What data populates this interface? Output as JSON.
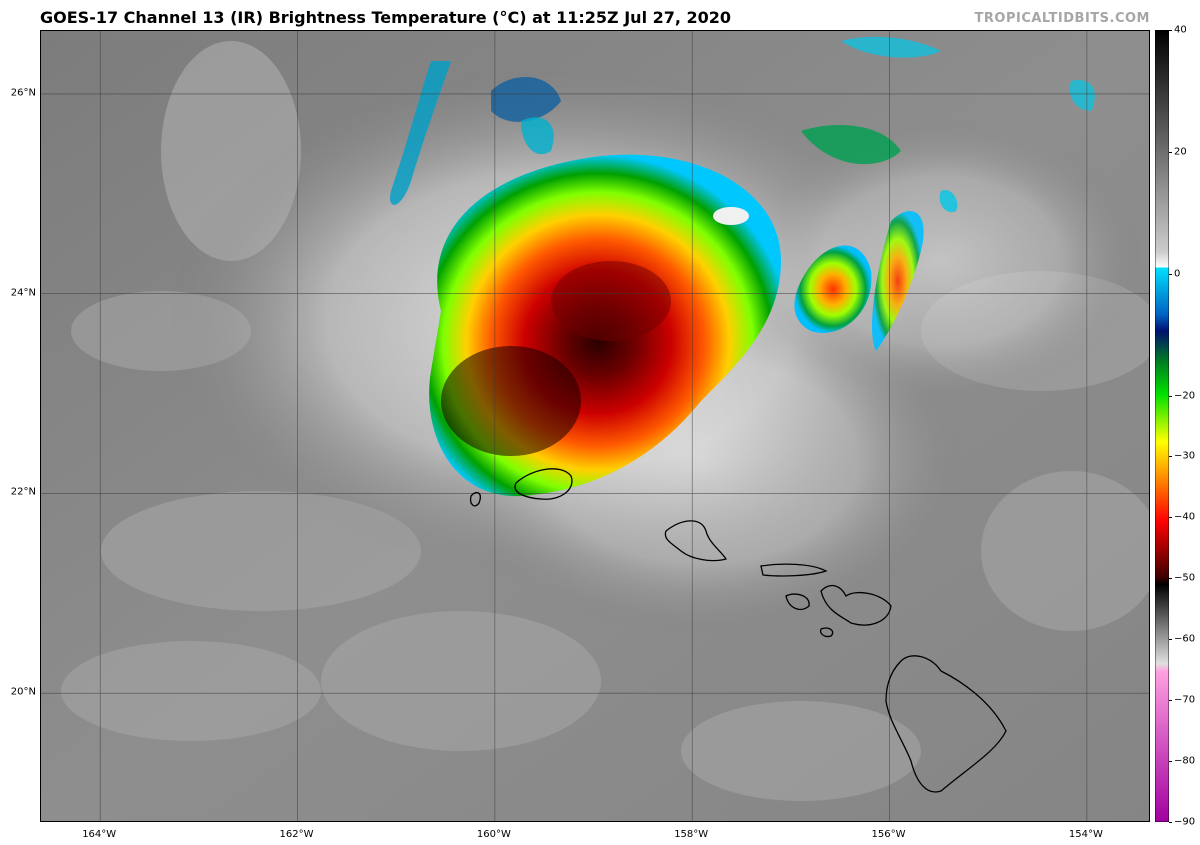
{
  "header": {
    "title": "GOES-17 Channel 13 (IR) Brightness Temperature (°C) at 11:25Z Jul 27, 2020",
    "credit": "TROPICALTIDBITS.COM"
  },
  "map": {
    "lat_labels": [
      "26°N",
      "24°N",
      "22°N",
      "20°N"
    ],
    "lon_labels": [
      "164°W",
      "162°W",
      "160°W",
      "158°W",
      "156°W",
      "154°W"
    ],
    "lat_values": [
      26,
      24,
      22,
      20
    ],
    "lon_values": [
      -164,
      -162,
      -160,
      -158,
      -156,
      -154
    ],
    "extent": {
      "lon_min": -164.6,
      "lon_max": -153.35,
      "lat_min": 18.7,
      "lat_max": 26.63
    }
  },
  "colorbar": {
    "units": "°C",
    "range": [
      -90,
      40
    ],
    "ticks": [
      "40",
      "20",
      "0",
      "−20",
      "−30",
      "−40",
      "−50",
      "−60",
      "−70",
      "−80",
      "−90"
    ],
    "tick_values": [
      40,
      20,
      0,
      -20,
      -30,
      -40,
      -50,
      -60,
      -70,
      -80,
      -90
    ]
  }
}
